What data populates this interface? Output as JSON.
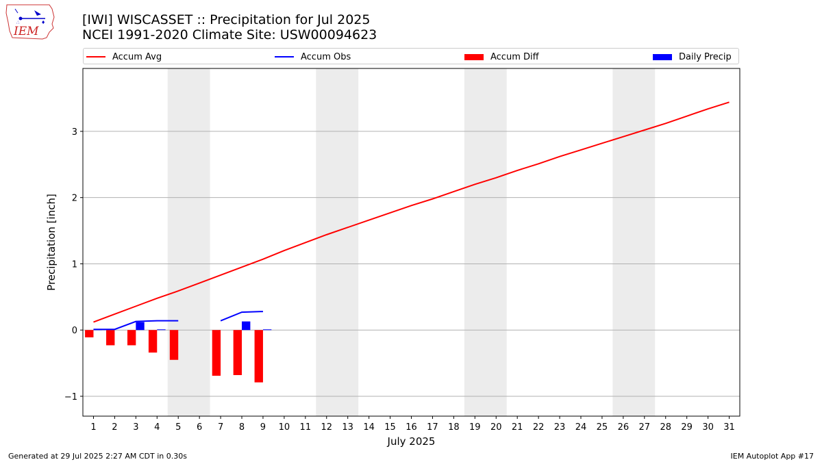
{
  "header": {
    "title_line1": "[IWI] WISCASSET :: Precipitation for Jul 2025",
    "title_line2": "NCEI 1991-2020 Climate Site: USW00094623"
  },
  "logo": {
    "text": "IEM"
  },
  "legend": {
    "accum_avg": "Accum Avg",
    "accum_obs": "Accum Obs",
    "accum_diff": "Accum Diff",
    "daily_precip": "Daily Precip"
  },
  "colors": {
    "avg": "#ff0000",
    "obs": "#0000ff",
    "diff": "#ff0000",
    "daily": "#0000ff",
    "weekend": "#ececec",
    "grid": "#b0b0b0"
  },
  "footer": {
    "left": "Generated at 29 Jul 2025 2:27 AM CDT in 0.30s",
    "right": "IEM Autoplot App #17"
  },
  "chart_data": {
    "type": "bar",
    "xlabel": "July 2025",
    "ylabel": "Precipitation [inch]",
    "xlim": [
      0.5,
      31.5
    ],
    "ylim": [
      -1.3,
      3.95
    ],
    "yticks": [
      -1,
      0,
      1,
      2,
      3
    ],
    "ytick_labels": [
      "−1",
      "0",
      "1",
      "2",
      "3"
    ],
    "grid": true,
    "legend_placement": "top",
    "weekend_days": [
      5,
      6,
      12,
      13,
      19,
      20,
      26,
      27
    ],
    "days": [
      1,
      2,
      3,
      4,
      5,
      6,
      7,
      8,
      9,
      10,
      11,
      12,
      13,
      14,
      15,
      16,
      17,
      18,
      19,
      20,
      21,
      22,
      23,
      24,
      25,
      26,
      27,
      28,
      29,
      30,
      31
    ],
    "series": [
      {
        "name": "Accum Avg",
        "kind": "line",
        "x": [
          1,
          2,
          3,
          4,
          5,
          6,
          7,
          8,
          9,
          10,
          11,
          12,
          13,
          14,
          15,
          16,
          17,
          18,
          19,
          20,
          21,
          22,
          23,
          24,
          25,
          26,
          27,
          28,
          29,
          30,
          31
        ],
        "values": [
          0.12,
          0.24,
          0.36,
          0.48,
          0.59,
          0.71,
          0.83,
          0.95,
          1.07,
          1.2,
          1.32,
          1.44,
          1.55,
          1.66,
          1.77,
          1.88,
          1.98,
          2.09,
          2.2,
          2.3,
          2.41,
          2.51,
          2.62,
          2.72,
          2.82,
          2.92,
          3.02,
          3.12,
          3.23,
          3.34,
          3.44
        ]
      },
      {
        "name": "Accum Obs",
        "kind": "line",
        "x": [
          1,
          2,
          3,
          4,
          5,
          7,
          8,
          9
        ],
        "values": [
          0.01,
          0.01,
          0.13,
          0.14,
          0.14,
          0.14,
          0.27,
          0.28
        ],
        "segments": [
          [
            1,
            2,
            3,
            4,
            5
          ],
          [
            7,
            8,
            9
          ]
        ]
      },
      {
        "name": "Accum Diff",
        "kind": "bar",
        "x": [
          1,
          2,
          3,
          4,
          5,
          7,
          8,
          9
        ],
        "values": [
          -0.11,
          -0.23,
          -0.23,
          -0.34,
          -0.45,
          -0.69,
          -0.68,
          -0.79
        ]
      },
      {
        "name": "Daily Precip",
        "kind": "bar",
        "x": [
          1,
          2,
          3,
          4,
          5,
          7,
          8,
          9
        ],
        "values": [
          0.01,
          0.0,
          0.12,
          0.01,
          0.0,
          0.0,
          0.13,
          0.01
        ]
      }
    ]
  }
}
